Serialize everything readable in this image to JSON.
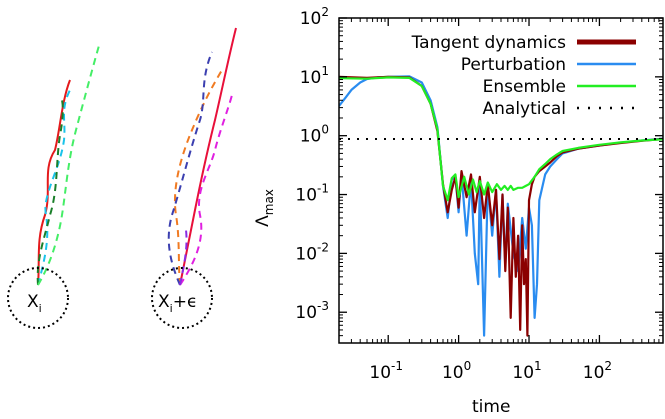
{
  "colors": {
    "tangent": "#8b0000",
    "perturbation": "#2a8cf0",
    "ensemble": "#22ee22",
    "analytical": "#000000",
    "traj_left": [
      "#e41a1c",
      "#19c3ea",
      "#1a7f2a",
      "#44ee66"
    ],
    "traj_right": [
      "#e8103a",
      "#f07a22",
      "#3b3fb0",
      "#e020e0",
      "#8a2be2"
    ]
  },
  "schematic": {
    "left_label_base": "X",
    "left_label_sub": "i",
    "right_label_base": "X",
    "right_label_sub": "i",
    "right_label_suffix": "+ϵ"
  },
  "chart_data": {
    "type": "line",
    "xlabel": "time",
    "ylabel_base": "Λ",
    "ylabel_sub": "max",
    "xscale": "log",
    "yscale": "log",
    "xlim": [
      0.02,
      800
    ],
    "ylim": [
      0.0003,
      100
    ],
    "xticks": [
      {
        "base": "10",
        "exp": "-1",
        "value": 0.1
      },
      {
        "base": "10",
        "exp": "0",
        "value": 1
      },
      {
        "base": "10",
        "exp": "1",
        "value": 10
      },
      {
        "base": "10",
        "exp": "2",
        "value": 100
      }
    ],
    "yticks": [
      {
        "base": "10",
        "exp": "2",
        "value": 100
      },
      {
        "base": "10",
        "exp": "1",
        "value": 10
      },
      {
        "base": "10",
        "exp": "0",
        "value": 1
      },
      {
        "base": "10",
        "exp": "-1",
        "value": 0.1
      },
      {
        "base": "10",
        "exp": "-2",
        "value": 0.01
      },
      {
        "base": "10",
        "exp": "-3",
        "value": 0.001
      }
    ],
    "legend_position": "top-right",
    "grid": false,
    "series": [
      {
        "name": "Tangent dynamics",
        "color": "#8b0000",
        "style": "solid",
        "x": [
          0.02,
          0.05,
          0.1,
          0.2,
          0.3,
          0.4,
          0.5,
          0.6,
          0.7,
          0.8,
          0.9,
          1.0,
          1.1,
          1.3,
          1.5,
          1.7,
          2.0,
          2.3,
          2.6,
          3.0,
          3.4,
          3.8,
          4.2,
          4.6,
          5.0,
          5.5,
          6.0,
          6.5,
          7.0,
          7.5,
          8.0,
          8.5,
          9.0,
          9.5,
          10,
          11,
          12,
          14,
          17,
          20,
          25,
          30,
          50,
          100,
          200,
          400,
          800
        ],
        "y": [
          10,
          9.6,
          10,
          9.8,
          7,
          3.5,
          1.2,
          0.15,
          0.05,
          0.12,
          0.2,
          0.06,
          0.25,
          0.09,
          0.22,
          0.05,
          0.2,
          0.04,
          0.15,
          0.03,
          0.12,
          0.008,
          0.1,
          0.005,
          0.06,
          0.0008,
          0.04,
          0.004,
          0.02,
          0.0005,
          0.03,
          0.003,
          0.008,
          0.0004,
          0.08,
          0.15,
          0.2,
          0.25,
          0.3,
          0.35,
          0.45,
          0.52,
          0.6,
          0.68,
          0.75,
          0.82,
          0.88
        ]
      },
      {
        "name": "Perturbation",
        "color": "#2a8cf0",
        "style": "solid",
        "x": [
          0.02,
          0.025,
          0.03,
          0.04,
          0.05,
          0.07,
          0.1,
          0.2,
          0.3,
          0.4,
          0.5,
          0.6,
          0.7,
          0.8,
          0.9,
          1.0,
          1.1,
          1.3,
          1.5,
          1.7,
          1.9,
          2.0,
          2.3,
          2.6,
          3.0,
          3.4,
          3.8,
          4.2,
          4.6,
          5.0,
          6.0,
          7.0,
          8.0,
          9.0,
          10,
          11,
          12,
          13,
          14,
          17,
          20,
          25,
          30,
          50,
          100,
          200,
          400,
          800
        ],
        "y": [
          3.2,
          4.5,
          6.0,
          8.0,
          9.2,
          9.8,
          10,
          10.2,
          8,
          4,
          1.4,
          0.14,
          0.04,
          0.18,
          0.2,
          0.05,
          0.22,
          0.02,
          0.18,
          0.01,
          0.003,
          0.19,
          0.0004,
          0.15,
          0.02,
          0.12,
          0.004,
          0.1,
          0.006,
          0.07,
          0.01,
          0.005,
          0.04,
          0.012,
          0.06,
          0.03,
          0.0008,
          0.003,
          0.08,
          0.22,
          0.3,
          0.4,
          0.5,
          0.6,
          0.68,
          0.76,
          0.83,
          0.89
        ]
      },
      {
        "name": "Ensemble",
        "color": "#22ee22",
        "style": "solid",
        "x": [
          0.02,
          0.05,
          0.1,
          0.2,
          0.3,
          0.4,
          0.5,
          0.6,
          0.7,
          0.8,
          0.9,
          1.0,
          1.2,
          1.4,
          1.6,
          1.8,
          2.0,
          2.3,
          2.6,
          3.0,
          3.5,
          4.0,
          4.5,
          5.0,
          5.5,
          6.0,
          7.0,
          8.0,
          9.0,
          10,
          12,
          14,
          17,
          20,
          25,
          30,
          50,
          100,
          200,
          400,
          800
        ],
        "y": [
          9.5,
          9.3,
          9.8,
          9.6,
          7,
          3.5,
          1.3,
          0.14,
          0.08,
          0.19,
          0.22,
          0.09,
          0.2,
          0.1,
          0.18,
          0.11,
          0.17,
          0.1,
          0.16,
          0.11,
          0.15,
          0.12,
          0.14,
          0.12,
          0.14,
          0.12,
          0.13,
          0.13,
          0.14,
          0.15,
          0.2,
          0.27,
          0.33,
          0.4,
          0.48,
          0.55,
          0.62,
          0.7,
          0.77,
          0.83,
          0.87
        ]
      },
      {
        "name": "Analytical",
        "color": "#000000",
        "style": "dotted",
        "x": [
          0.02,
          800
        ],
        "y": [
          0.88,
          0.88
        ]
      }
    ]
  }
}
